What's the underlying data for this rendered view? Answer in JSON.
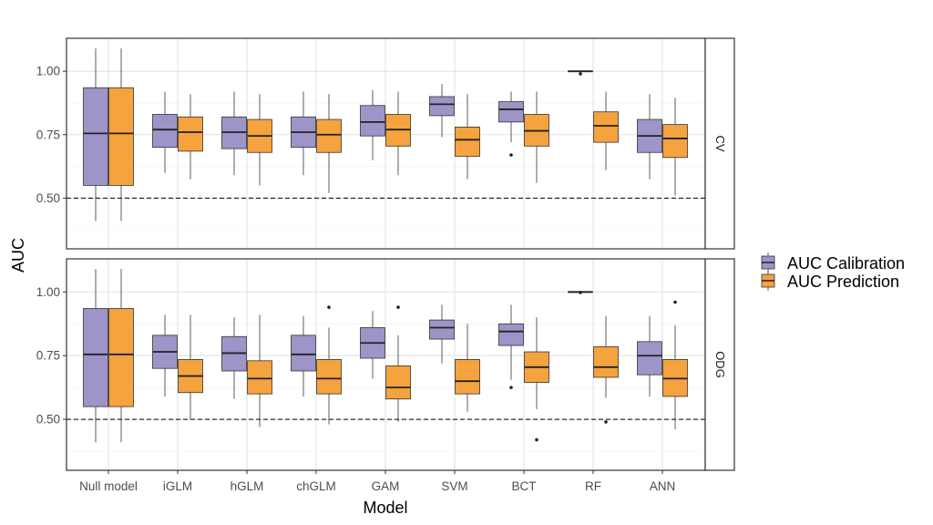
{
  "chart_data": {
    "type": "boxplot",
    "xlabel": "Model",
    "ylabel": "AUC",
    "categories": [
      "Null model",
      "iGLM",
      "hGLM",
      "chGLM",
      "GAM",
      "SVM",
      "BCT",
      "RF",
      "ANN"
    ],
    "ylim": [
      0.3,
      1.13
    ],
    "yticks": [
      "0.50",
      "0.75",
      "1.00"
    ],
    "reference_line": 0.5,
    "grid": true,
    "legend_position": "right",
    "series": [
      {
        "name": "AUC Calibration",
        "color": "#9E94C8"
      },
      {
        "name": "AUC Prediction",
        "color": "#F4A33E"
      }
    ],
    "panels": [
      {
        "label": "CV",
        "boxes": [
          {
            "category": "Null model",
            "series": "AUC Calibration",
            "min": 0.41,
            "q1": 0.55,
            "median": 0.755,
            "q3": 0.935,
            "max": 1.09,
            "outliers": []
          },
          {
            "category": "Null model",
            "series": "AUC Prediction",
            "min": 0.41,
            "q1": 0.55,
            "median": 0.755,
            "q3": 0.935,
            "max": 1.09,
            "outliers": []
          },
          {
            "category": "iGLM",
            "series": "AUC Calibration",
            "min": 0.6,
            "q1": 0.7,
            "median": 0.77,
            "q3": 0.83,
            "max": 0.92,
            "outliers": []
          },
          {
            "category": "iGLM",
            "series": "AUC Prediction",
            "min": 0.575,
            "q1": 0.685,
            "median": 0.76,
            "q3": 0.82,
            "max": 0.91,
            "outliers": []
          },
          {
            "category": "hGLM",
            "series": "AUC Calibration",
            "min": 0.59,
            "q1": 0.695,
            "median": 0.76,
            "q3": 0.82,
            "max": 0.92,
            "outliers": []
          },
          {
            "category": "hGLM",
            "series": "AUC Prediction",
            "min": 0.55,
            "q1": 0.68,
            "median": 0.745,
            "q3": 0.81,
            "max": 0.91,
            "outliers": []
          },
          {
            "category": "chGLM",
            "series": "AUC Calibration",
            "min": 0.59,
            "q1": 0.7,
            "median": 0.76,
            "q3": 0.82,
            "max": 0.92,
            "outliers": []
          },
          {
            "category": "chGLM",
            "series": "AUC Prediction",
            "min": 0.52,
            "q1": 0.68,
            "median": 0.75,
            "q3": 0.81,
            "max": 0.91,
            "outliers": []
          },
          {
            "category": "GAM",
            "series": "AUC Calibration",
            "min": 0.65,
            "q1": 0.745,
            "median": 0.8,
            "q3": 0.865,
            "max": 0.925,
            "outliers": []
          },
          {
            "category": "GAM",
            "series": "AUC Prediction",
            "min": 0.59,
            "q1": 0.705,
            "median": 0.77,
            "q3": 0.83,
            "max": 0.92,
            "outliers": []
          },
          {
            "category": "SVM",
            "series": "AUC Calibration",
            "min": 0.74,
            "q1": 0.825,
            "median": 0.87,
            "q3": 0.9,
            "max": 0.95,
            "outliers": []
          },
          {
            "category": "SVM",
            "series": "AUC Prediction",
            "min": 0.575,
            "q1": 0.665,
            "median": 0.73,
            "q3": 0.78,
            "max": 0.91,
            "outliers": []
          },
          {
            "category": "BCT",
            "series": "AUC Calibration",
            "min": 0.72,
            "q1": 0.8,
            "median": 0.85,
            "q3": 0.88,
            "max": 0.92,
            "outliers": [
              0.67
            ]
          },
          {
            "category": "BCT",
            "series": "AUC Prediction",
            "min": 0.56,
            "q1": 0.705,
            "median": 0.765,
            "q3": 0.83,
            "max": 0.92,
            "outliers": []
          },
          {
            "category": "RF",
            "series": "AUC Calibration",
            "min": 1.0,
            "q1": 1.0,
            "median": 1.0,
            "q3": 1.0,
            "max": 1.0,
            "outliers": [
              0.99
            ]
          },
          {
            "category": "RF",
            "series": "AUC Prediction",
            "min": 0.61,
            "q1": 0.72,
            "median": 0.785,
            "q3": 0.84,
            "max": 0.92,
            "outliers": []
          },
          {
            "category": "ANN",
            "series": "AUC Calibration",
            "min": 0.575,
            "q1": 0.68,
            "median": 0.745,
            "q3": 0.81,
            "max": 0.91,
            "outliers": []
          },
          {
            "category": "ANN",
            "series": "AUC Prediction",
            "min": 0.51,
            "q1": 0.66,
            "median": 0.735,
            "q3": 0.79,
            "max": 0.895,
            "outliers": []
          }
        ]
      },
      {
        "label": "ODG",
        "boxes": [
          {
            "category": "Null model",
            "series": "AUC Calibration",
            "min": 0.41,
            "q1": 0.55,
            "median": 0.755,
            "q3": 0.935,
            "max": 1.09,
            "outliers": []
          },
          {
            "category": "Null model",
            "series": "AUC Prediction",
            "min": 0.41,
            "q1": 0.55,
            "median": 0.755,
            "q3": 0.935,
            "max": 1.09,
            "outliers": []
          },
          {
            "category": "iGLM",
            "series": "AUC Calibration",
            "min": 0.59,
            "q1": 0.7,
            "median": 0.765,
            "q3": 0.83,
            "max": 0.91,
            "outliers": []
          },
          {
            "category": "iGLM",
            "series": "AUC Prediction",
            "min": 0.5,
            "q1": 0.605,
            "median": 0.67,
            "q3": 0.735,
            "max": 0.91,
            "outliers": []
          },
          {
            "category": "hGLM",
            "series": "AUC Calibration",
            "min": 0.58,
            "q1": 0.69,
            "median": 0.76,
            "q3": 0.825,
            "max": 0.9,
            "outliers": []
          },
          {
            "category": "hGLM",
            "series": "AUC Prediction",
            "min": 0.47,
            "q1": 0.6,
            "median": 0.66,
            "q3": 0.73,
            "max": 0.91,
            "outliers": []
          },
          {
            "category": "chGLM",
            "series": "AUC Calibration",
            "min": 0.59,
            "q1": 0.69,
            "median": 0.755,
            "q3": 0.83,
            "max": 0.905,
            "outliers": []
          },
          {
            "category": "chGLM",
            "series": "AUC Prediction",
            "min": 0.48,
            "q1": 0.6,
            "median": 0.66,
            "q3": 0.735,
            "max": 0.86,
            "outliers": [
              0.94
            ]
          },
          {
            "category": "GAM",
            "series": "AUC Calibration",
            "min": 0.66,
            "q1": 0.74,
            "median": 0.8,
            "q3": 0.86,
            "max": 0.925,
            "outliers": []
          },
          {
            "category": "GAM",
            "series": "AUC Prediction",
            "min": 0.49,
            "q1": 0.58,
            "median": 0.625,
            "q3": 0.71,
            "max": 0.83,
            "outliers": [
              0.94
            ]
          },
          {
            "category": "SVM",
            "series": "AUC Calibration",
            "min": 0.72,
            "q1": 0.815,
            "median": 0.86,
            "q3": 0.89,
            "max": 0.95,
            "outliers": []
          },
          {
            "category": "SVM",
            "series": "AUC Prediction",
            "min": 0.53,
            "q1": 0.6,
            "median": 0.65,
            "q3": 0.735,
            "max": 0.875,
            "outliers": []
          },
          {
            "category": "BCT",
            "series": "AUC Calibration",
            "min": 0.655,
            "q1": 0.79,
            "median": 0.845,
            "q3": 0.875,
            "max": 0.95,
            "outliers": [
              0.625
            ]
          },
          {
            "category": "BCT",
            "series": "AUC Prediction",
            "min": 0.54,
            "q1": 0.645,
            "median": 0.705,
            "q3": 0.765,
            "max": 0.9,
            "outliers": [
              0.42
            ]
          },
          {
            "category": "RF",
            "series": "AUC Calibration",
            "min": 1.0,
            "q1": 1.0,
            "median": 1.0,
            "q3": 1.0,
            "max": 1.0,
            "outliers": [
              0.998
            ]
          },
          {
            "category": "RF",
            "series": "AUC Prediction",
            "min": 0.585,
            "q1": 0.665,
            "median": 0.705,
            "q3": 0.785,
            "max": 0.905,
            "outliers": [
              0.49
            ]
          },
          {
            "category": "ANN",
            "series": "AUC Calibration",
            "min": 0.59,
            "q1": 0.675,
            "median": 0.75,
            "q3": 0.805,
            "max": 0.905,
            "outliers": []
          },
          {
            "category": "ANN",
            "series": "AUC Prediction",
            "min": 0.46,
            "q1": 0.59,
            "median": 0.66,
            "q3": 0.735,
            "max": 0.87,
            "outliers": [
              0.96
            ]
          }
        ]
      }
    ]
  }
}
